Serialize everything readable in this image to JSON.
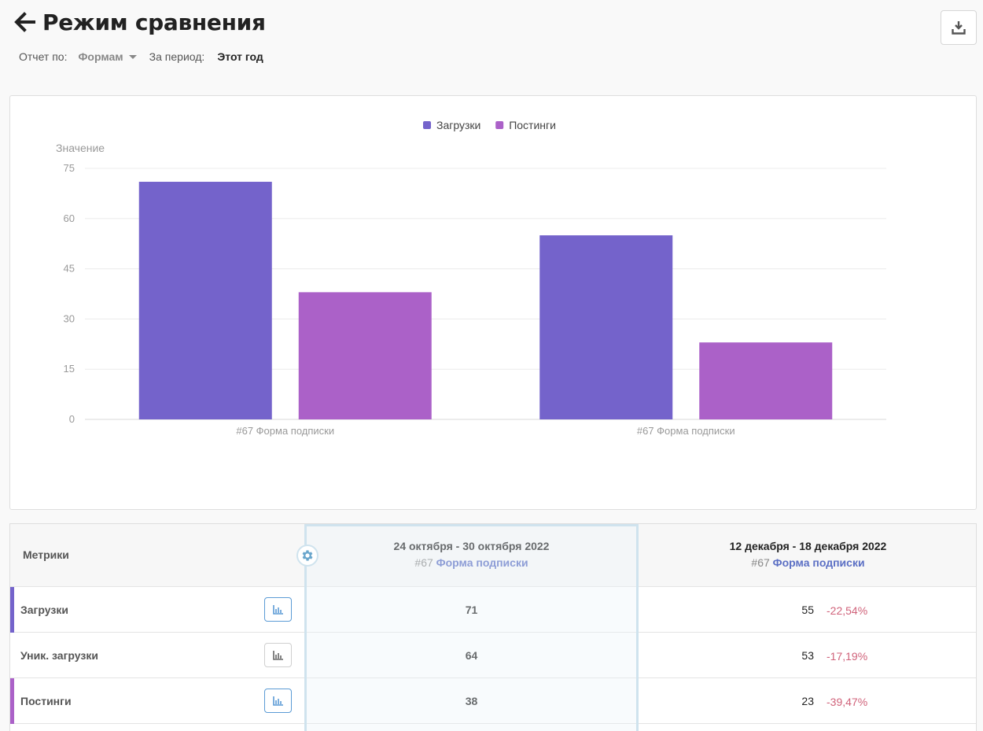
{
  "header": {
    "title": "Режим сравнения"
  },
  "filters": {
    "report_label": "Отчет по:",
    "report_value": "Формам",
    "period_label": "За период:",
    "period_value": "Этот год"
  },
  "colors": {
    "downloads": "#7463cb",
    "postings": "#ab61c8",
    "negative": "#d0627a",
    "link": "#5b6fc4"
  },
  "chart_data": {
    "type": "bar",
    "legend": [
      "Загрузки",
      "Постинги"
    ],
    "legend_position": "top-center",
    "ylabel": "Значение",
    "yticks": [
      0,
      15,
      30,
      45,
      60,
      75
    ],
    "ylim": [
      0,
      75
    ],
    "grid": true,
    "categories": [
      "#67 Форма подписки",
      "#67 Форма подписки"
    ],
    "series": [
      {
        "name": "Загрузки",
        "color": "#7463cb",
        "values": [
          71,
          55
        ]
      },
      {
        "name": "Постинги",
        "color": "#ab61c8",
        "values": [
          38,
          23
        ]
      }
    ]
  },
  "table": {
    "metrics_header": "Метрики",
    "periods": [
      {
        "date": "24 октября - 30 октября 2022",
        "form_num": "#67",
        "form_name": "Форма подписки"
      },
      {
        "date": "12 декабря - 18 декабря 2022",
        "form_num": "#67",
        "form_name": "Форма подписки"
      }
    ],
    "rows": [
      {
        "name": "Загрузки",
        "marker": "#7463cb",
        "chart_active": true,
        "value_a": "71",
        "value_b": "55",
        "delta": "-22,54%"
      },
      {
        "name": "Уник. загрузки",
        "marker": "",
        "chart_active": false,
        "value_a": "64",
        "value_b": "53",
        "delta": "-17,19%"
      },
      {
        "name": "Постинги",
        "marker": "#ab61c8",
        "chart_active": true,
        "value_a": "38",
        "value_b": "23",
        "delta": "-39,47%"
      }
    ]
  }
}
